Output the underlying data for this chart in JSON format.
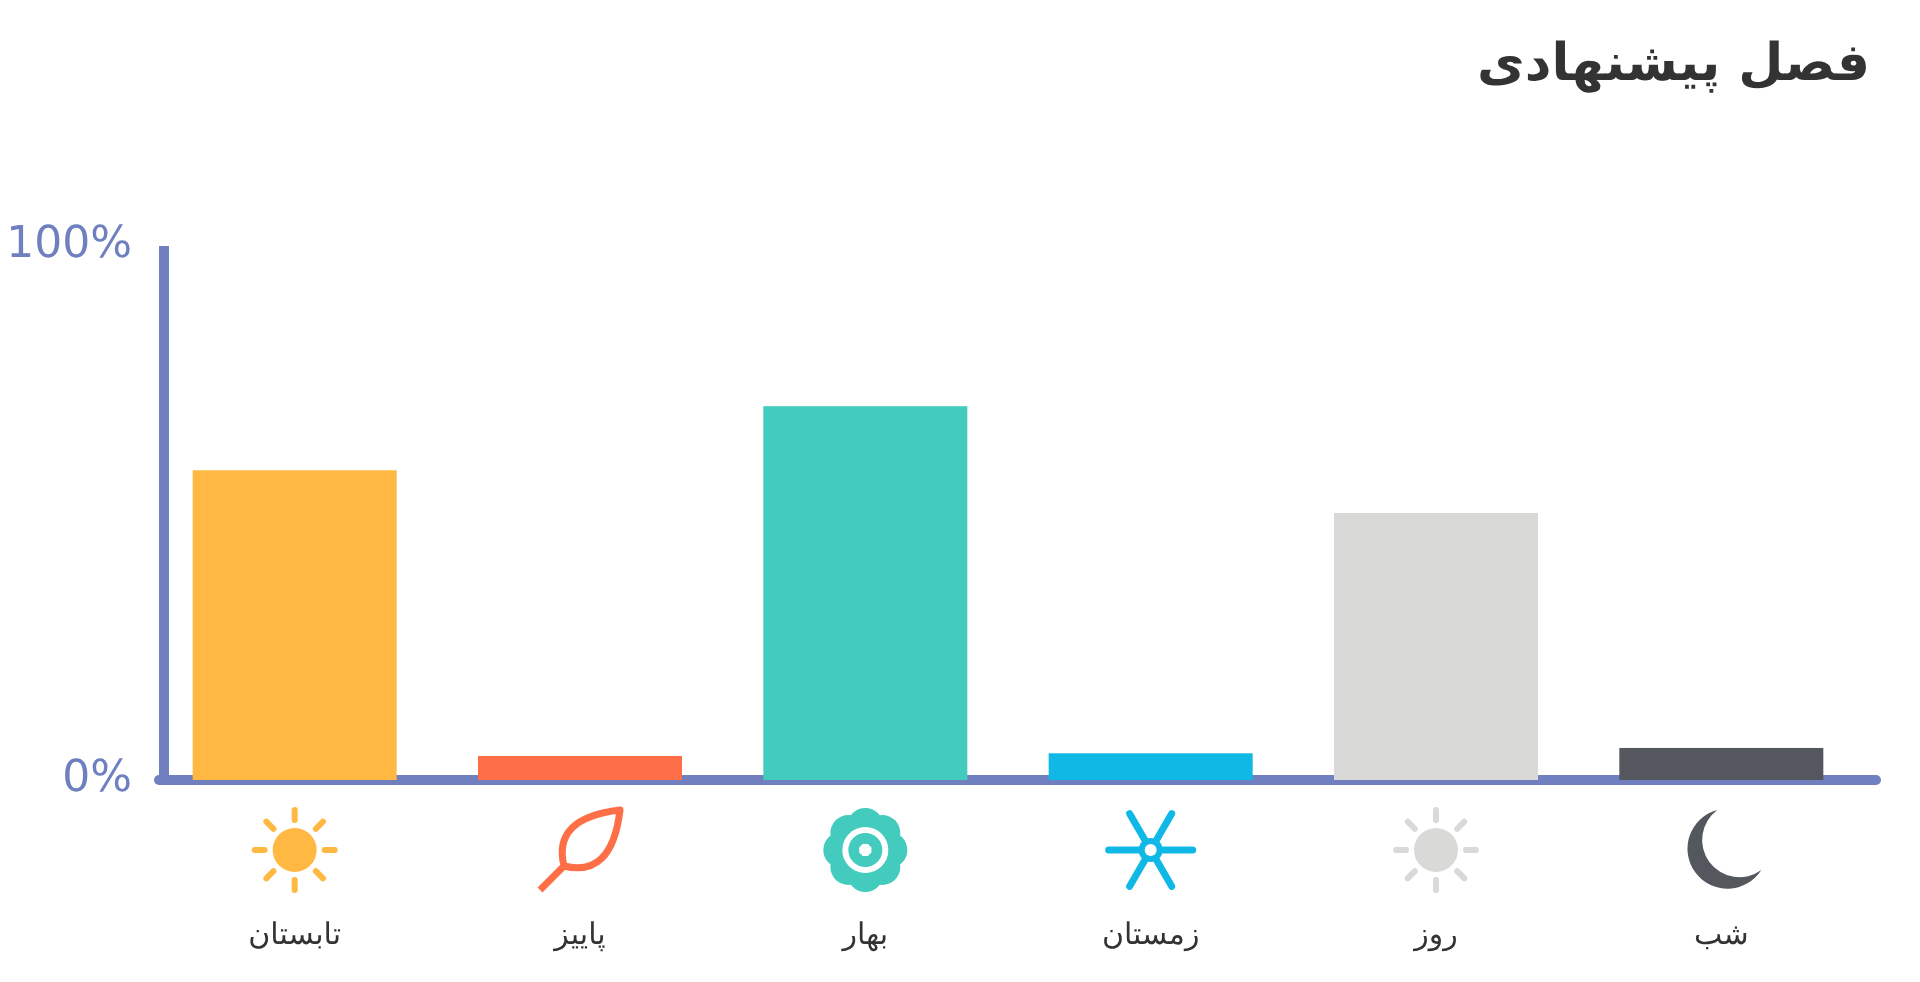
{
  "chart_data": {
    "type": "bar",
    "title": "فصل پیشنهادی",
    "categories": [
      "تابستان",
      "پاییز",
      "بهار",
      "زمستان",
      "روز",
      "شب"
    ],
    "values": [
      58,
      4.5,
      70,
      5,
      50,
      6
    ],
    "colors": [
      "#ffb841",
      "#ff6f47",
      "#43cbbe",
      "#10b8e5",
      "#d9d9d7",
      "#54575e"
    ],
    "ylim": [
      0,
      100
    ],
    "yticks": [
      {
        "value": 0,
        "label": "0%"
      },
      {
        "value": 100,
        "label": "100%"
      }
    ],
    "grid": false
  }
}
